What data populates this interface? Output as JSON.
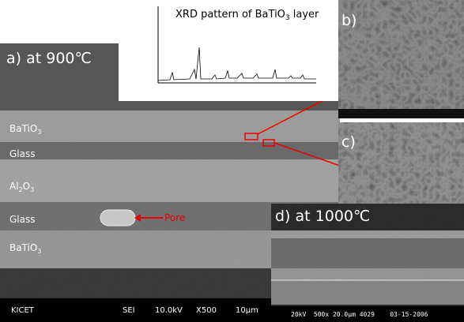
{
  "panel_a": {
    "label": "a) at 900℃",
    "layers": [
      {
        "base": "BaTiO",
        "sub": "3"
      },
      {
        "base": "Glass"
      },
      {
        "base": "Al",
        "sub": "2",
        "base2": "O",
        "sub2": "3"
      },
      {
        "base": "Glass"
      },
      {
        "base": "BaTiO",
        "sub": "3"
      }
    ],
    "pore": "Pore",
    "footer": [
      "KICET",
      "SEI",
      "10.0kV",
      "X500",
      "10μm"
    ]
  },
  "xrd": {
    "title": "XRD pattern of BaTiO",
    "sub": "3",
    "tail": " layer"
  },
  "panel_b": {
    "label": "b)"
  },
  "panel_c": {
    "label": "c)"
  },
  "panel_d": {
    "label": "d) at 1000℃",
    "footer": "20kV  500x 20.0μm 4029    03-15-2006"
  }
}
